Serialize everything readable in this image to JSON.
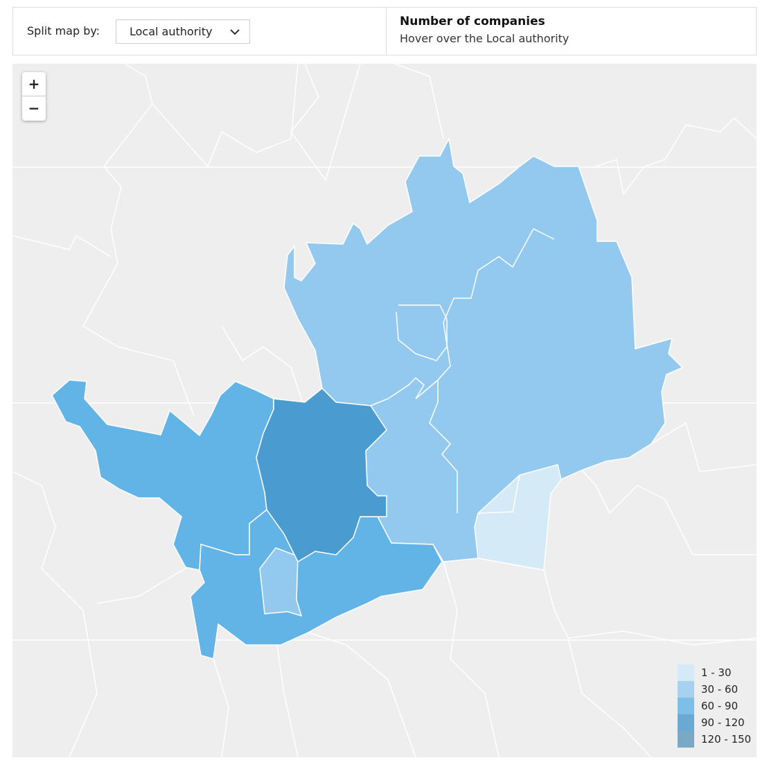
{
  "header": {
    "split_label": "Split map by:",
    "dropdown": "Local authority",
    "info_title": "Number of companies",
    "info_hint": "Hover over the Local authority"
  },
  "zoom": {
    "in": "+",
    "out": "−"
  },
  "legend": {
    "items": [
      {
        "label": "1 - 30",
        "color": "#d4eaf7"
      },
      {
        "label": "30 - 60",
        "color": "#a6d2f0"
      },
      {
        "label": "60 - 90",
        "color": "#7cbfe9"
      },
      {
        "label": "90 - 120",
        "color": "#6aa9d4"
      },
      {
        "label": "120 - 150",
        "color": "#7aa9c8"
      }
    ]
  }
}
